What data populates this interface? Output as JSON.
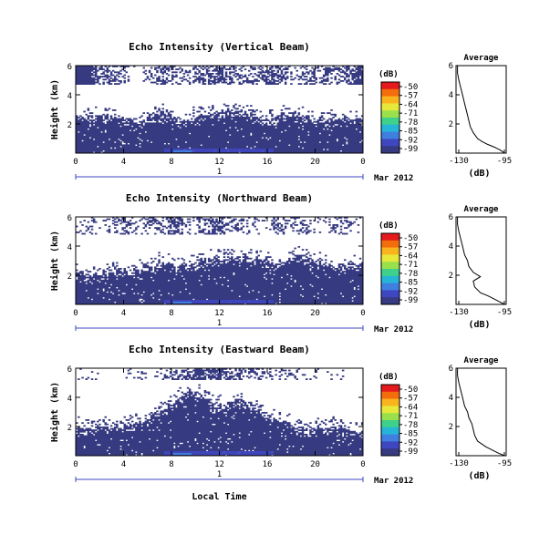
{
  "figure": {
    "xlabel": "Local Time",
    "x_ticks": [
      "0",
      "4",
      "8",
      "12",
      "16",
      "20",
      "0"
    ],
    "y_ticks": [
      "6",
      "4",
      "2"
    ],
    "ylabel": "Height (km)",
    "day_label": "1",
    "date_label": "Mar 2012",
    "colorbar": {
      "unit": "(dB)",
      "labels": [
        "-50",
        "-57",
        "-64",
        "-71",
        "-78",
        "-85",
        "-92",
        "-99"
      ],
      "colors": [
        "#e41a1c",
        "#f46d0c",
        "#f9b31d",
        "#e8e83a",
        "#9ae04b",
        "#3fd08c",
        "#25b5d6",
        "#3f7fe0",
        "#3f47c0",
        "#363a80"
      ]
    },
    "average_title": "Average",
    "average_xlabel": "(dB)",
    "average_x_ticks": [
      "-130",
      "-95"
    ],
    "average_y_ticks": [
      "6",
      "4",
      "2"
    ],
    "fill_color": "#363a80"
  },
  "chart_data": [
    {
      "type": "heatmap",
      "title": "Echo Intensity (Vertical Beam)",
      "xlim": [
        0,
        24
      ],
      "ylim": [
        0,
        6
      ],
      "ylabel": "Height (km)",
      "echo_top_km": [
        2.6,
        2.4,
        2.5,
        2.6,
        2.3,
        2.2,
        2.5,
        2.9,
        2.3,
        2.4,
        2.6,
        2.8,
        3.0,
        3.1,
        2.7,
        2.3,
        2.4,
        2.8,
        2.6,
        2.4,
        2.3,
        2.4,
        2.5,
        2.4
      ],
      "upper_layer_bottom_km": 4.7,
      "upper_layer_presence": [
        1,
        1,
        0.4,
        0.6,
        0.2,
        0,
        0.3,
        0.5,
        0.3,
        0.2,
        0.4,
        0.6,
        0.5,
        0.3,
        0.4,
        0.5,
        0.6,
        0.3,
        0.2,
        0.4,
        0.5,
        0.3,
        0.6,
        1
      ]
    },
    {
      "type": "line",
      "title": "Average",
      "xlabel": "(dB)",
      "xlim": [
        -130,
        -95
      ],
      "ylim": [
        0,
        6
      ],
      "x": [
        -96,
        -99,
        -103,
        -108,
        -112,
        -115,
        -118,
        -120,
        -121,
        -122,
        -123,
        -124,
        -125,
        -126,
        -127,
        -128,
        -129,
        -129
      ],
      "y": [
        0.0,
        0.2,
        0.4,
        0.6,
        0.8,
        1.0,
        1.4,
        1.8,
        2.2,
        2.6,
        3.0,
        3.4,
        3.8,
        4.2,
        4.6,
        5.0,
        5.5,
        6.0
      ]
    },
    {
      "type": "heatmap",
      "title": "Echo Intensity (Northward Beam)",
      "xlim": [
        0,
        24
      ],
      "ylim": [
        0,
        6
      ],
      "ylabel": "Height (km)",
      "echo_top_km": [
        2.2,
        2.0,
        2.1,
        2.3,
        2.4,
        2.5,
        2.6,
        2.9,
        2.6,
        2.8,
        3.0,
        3.2,
        3.3,
        3.2,
        3.4,
        3.0,
        2.9,
        3.1,
        3.4,
        3.0,
        2.8,
        2.6,
        2.8,
        2.7
      ],
      "upper_layer_bottom_km": 4.8,
      "upper_layer_presence": [
        0.2,
        0.3,
        0.1,
        0.2,
        0.4,
        0.2,
        0.5,
        0.3,
        0.6,
        0.2,
        0.3,
        0.5,
        0.4,
        0.3,
        0.2,
        0.1,
        0.4,
        0.2,
        0.3,
        0.2,
        0.1,
        0.3,
        0.2,
        0.1
      ]
    },
    {
      "type": "line",
      "title": "Average",
      "xlabel": "(dB)",
      "xlim": [
        -130,
        -95
      ],
      "ylim": [
        0,
        6
      ],
      "x": [
        -96,
        -100,
        -104,
        -108,
        -113,
        -117,
        -118,
        -113,
        -118,
        -121,
        -122,
        -124,
        -125,
        -126,
        -127,
        -128,
        -129,
        -129
      ],
      "y": [
        0.0,
        0.2,
        0.4,
        0.6,
        0.8,
        1.2,
        1.6,
        1.9,
        2.2,
        2.6,
        3.0,
        3.4,
        3.8,
        4.2,
        4.6,
        5.0,
        5.5,
        6.0
      ]
    },
    {
      "type": "heatmap",
      "title": "Echo Intensity (Eastward Beam)",
      "xlim": [
        0,
        24
      ],
      "ylim": [
        0,
        6
      ],
      "ylabel": "Height (km)",
      "echo_top_km": [
        2.0,
        1.9,
        2.1,
        2.0,
        2.1,
        2.2,
        2.6,
        3.2,
        3.8,
        4.5,
        4.2,
        3.6,
        3.4,
        3.9,
        3.6,
        2.9,
        2.5,
        2.2,
        2.0,
        1.8,
        1.9,
        2.0,
        1.9,
        1.8
      ],
      "upper_layer_bottom_km": 5.2,
      "upper_layer_presence": [
        0.1,
        0.2,
        0,
        0,
        0.1,
        0.2,
        0.1,
        0.2,
        0.5,
        0.6,
        0.7,
        0.8,
        0.6,
        0.5,
        0.3,
        0.4,
        0.2,
        0.3,
        0.2,
        0.1,
        0,
        0.1,
        0.1,
        0
      ]
    },
    {
      "type": "line",
      "title": "Average",
      "xlabel": "(dB)",
      "xlim": [
        -130,
        -95
      ],
      "ylim": [
        0,
        6
      ],
      "x": [
        -96,
        -101,
        -105,
        -109,
        -112,
        -115,
        -117,
        -118,
        -119,
        -121,
        -122,
        -124,
        -125,
        -126,
        -127,
        -128,
        -129,
        -129
      ],
      "y": [
        0.0,
        0.2,
        0.4,
        0.6,
        0.8,
        1.0,
        1.4,
        1.8,
        2.2,
        2.6,
        3.0,
        3.4,
        3.8,
        4.2,
        4.6,
        5.0,
        5.5,
        6.0
      ]
    }
  ]
}
